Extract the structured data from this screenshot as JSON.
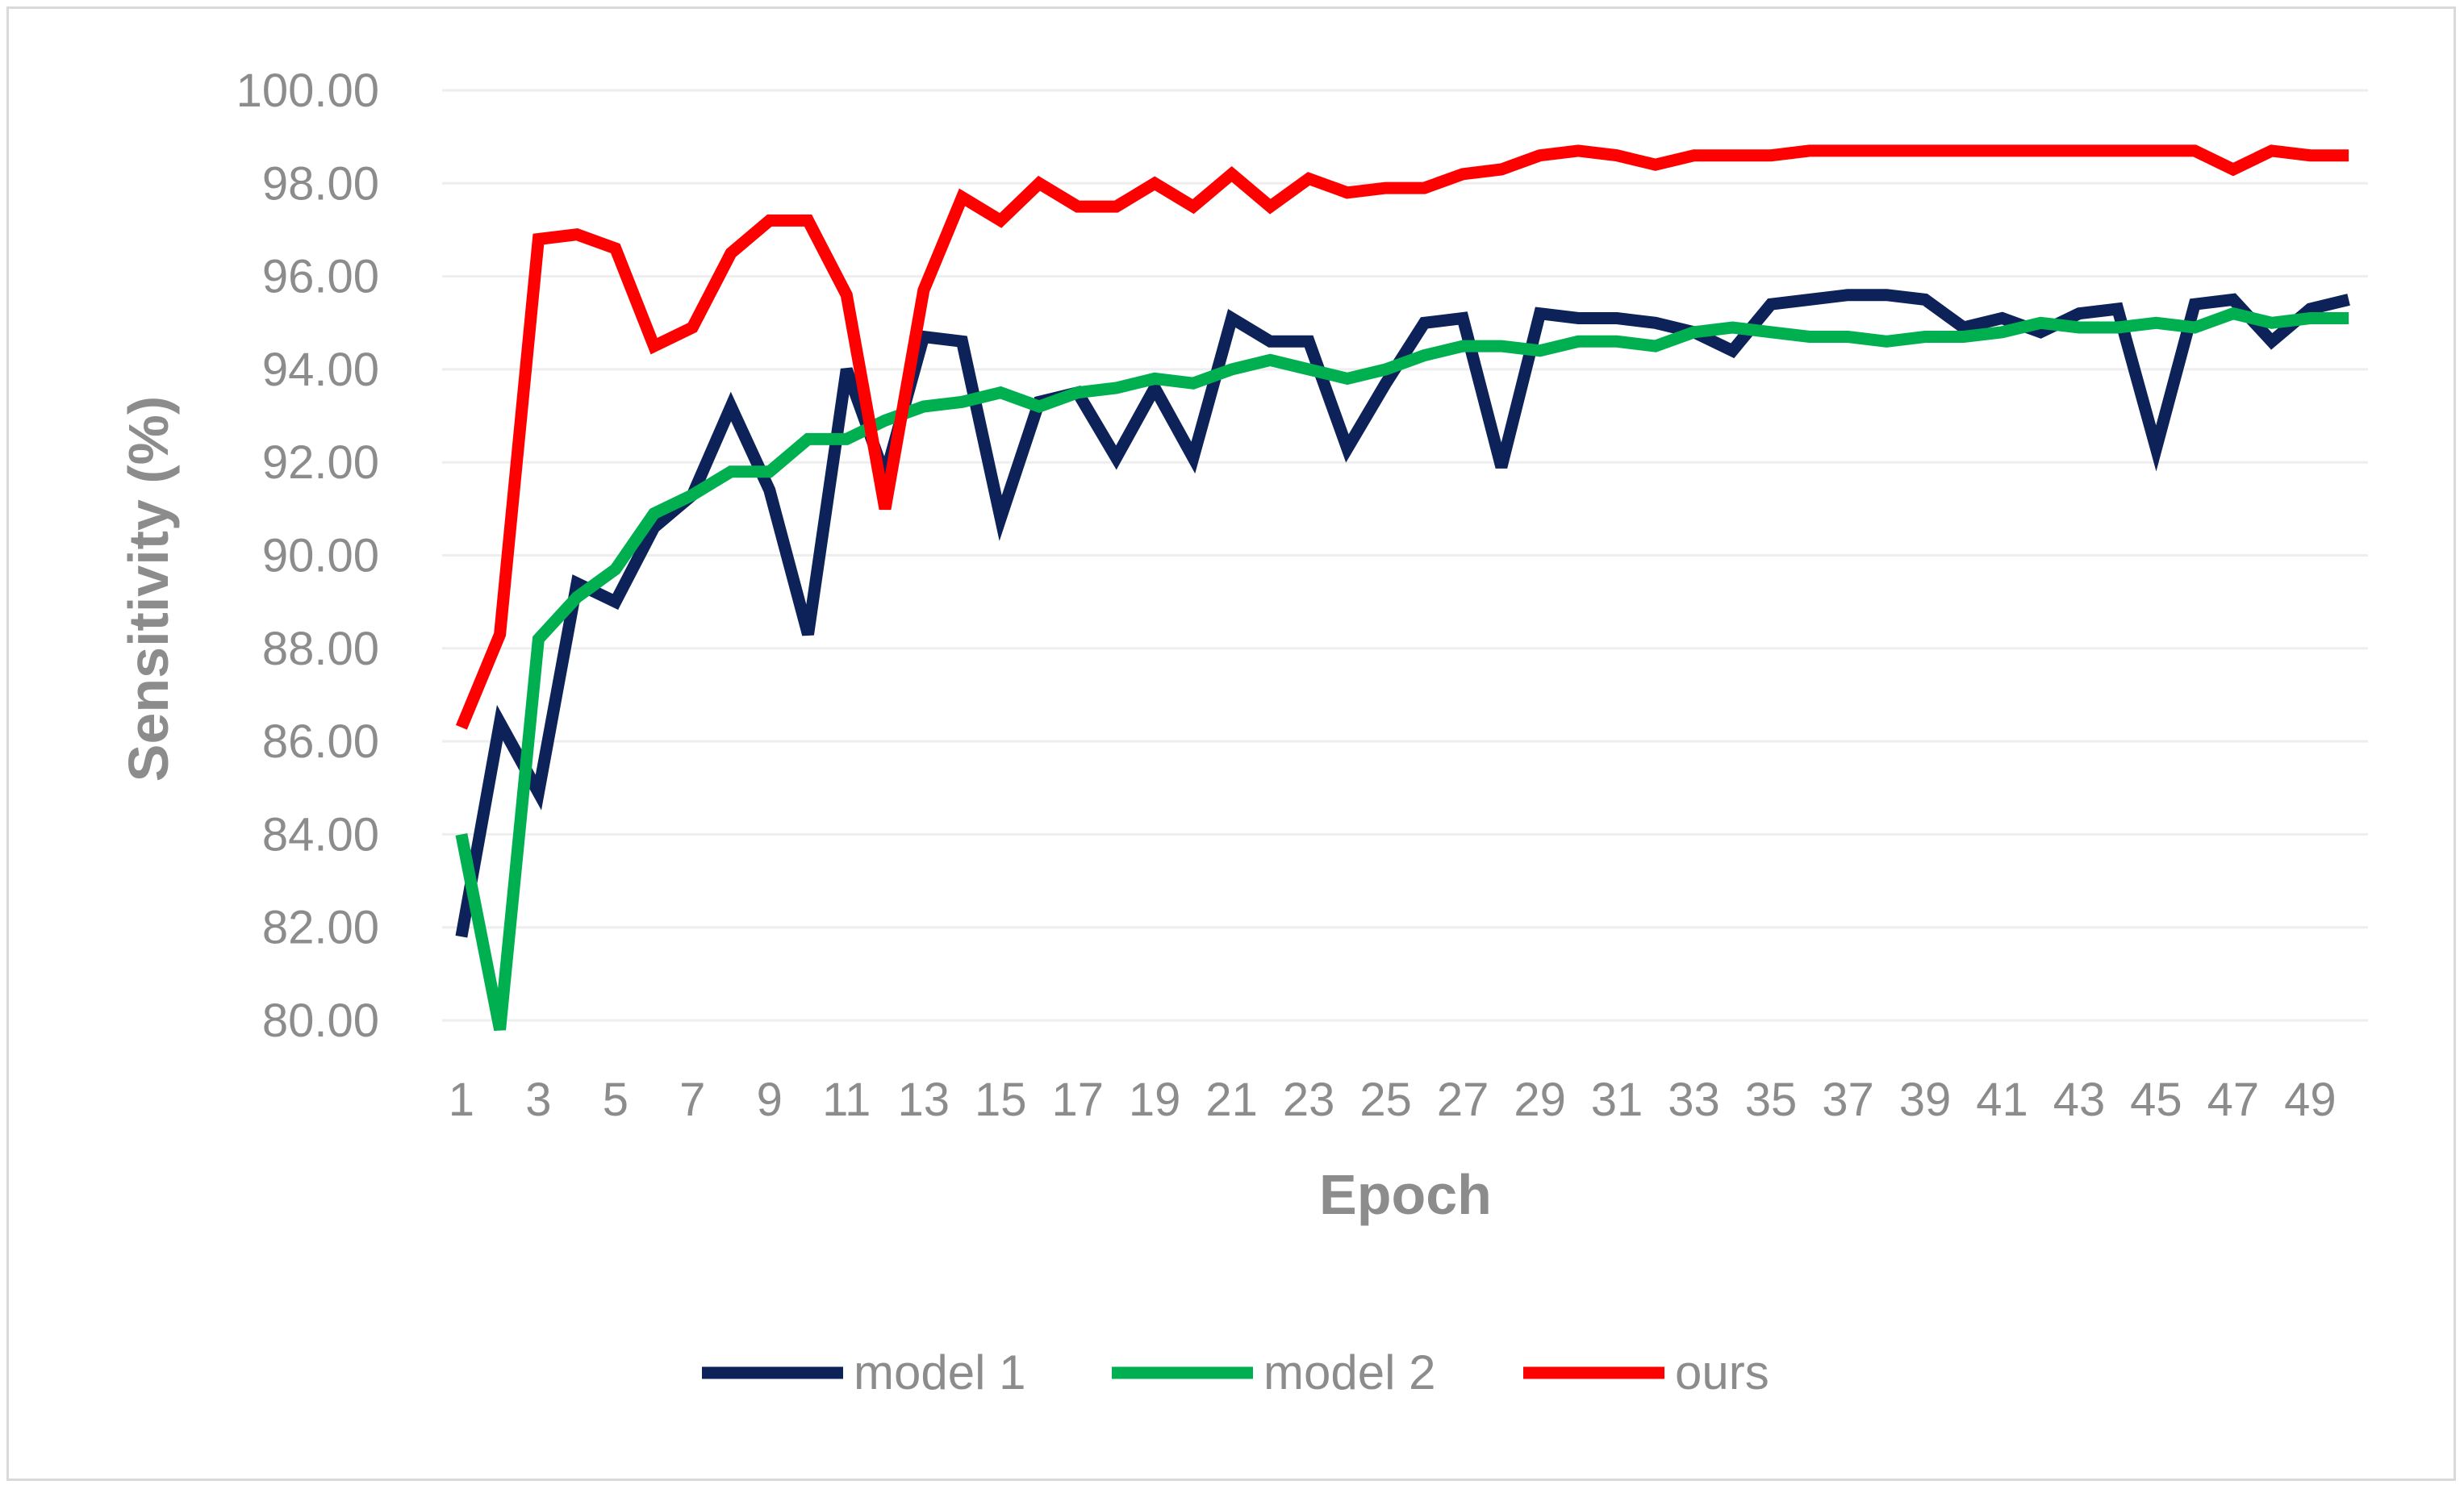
{
  "chart_data": {
    "type": "line",
    "title": "",
    "xlabel": "Epoch",
    "ylabel": "Sensitivity (%)",
    "ylim": [
      80,
      100
    ],
    "yticks": [
      "80.00",
      "82.00",
      "84.00",
      "86.00",
      "88.00",
      "90.00",
      "92.00",
      "94.00",
      "96.00",
      "98.00",
      "100.00"
    ],
    "xtick_labels": [
      "1",
      "3",
      "5",
      "7",
      "9",
      "11",
      "13",
      "15",
      "17",
      "19",
      "21",
      "23",
      "25",
      "27",
      "29",
      "31",
      "33",
      "35",
      "37",
      "39",
      "41",
      "43",
      "45",
      "47",
      "49"
    ],
    "grid": "horizontal",
    "legend": "bottom",
    "x": [
      1,
      2,
      3,
      4,
      5,
      6,
      7,
      8,
      9,
      10,
      11,
      12,
      13,
      14,
      15,
      16,
      17,
      18,
      19,
      20,
      21,
      22,
      23,
      24,
      25,
      26,
      27,
      28,
      29,
      30,
      31,
      32,
      33,
      34,
      35,
      36,
      37,
      38,
      39,
      40,
      41,
      42,
      43,
      44,
      45,
      46,
      47,
      48,
      49,
      50
    ],
    "series": [
      {
        "name": "model 1",
        "color": "#0d2258",
        "values": [
          81.8,
          86.4,
          84.9,
          89.4,
          89.0,
          90.6,
          91.3,
          93.2,
          91.4,
          88.3,
          94.0,
          91.7,
          94.7,
          94.6,
          90.8,
          93.3,
          93.5,
          92.1,
          93.6,
          92.1,
          95.1,
          94.6,
          94.6,
          92.3,
          93.7,
          95.0,
          95.1,
          91.9,
          95.2,
          95.1,
          95.1,
          95.0,
          94.8,
          94.4,
          95.4,
          95.5,
          95.6,
          95.6,
          95.5,
          94.9,
          95.1,
          94.8,
          95.2,
          95.3,
          92.3,
          95.4,
          95.5,
          94.6,
          95.3,
          95.5
        ]
      },
      {
        "name": "model 2",
        "color": "#00b050",
        "values": [
          84.0,
          79.8,
          88.2,
          89.1,
          89.7,
          90.9,
          91.3,
          91.8,
          91.8,
          92.5,
          92.5,
          92.9,
          93.2,
          93.3,
          93.5,
          93.2,
          93.5,
          93.6,
          93.8,
          93.7,
          94.0,
          94.2,
          94.0,
          93.8,
          94.0,
          94.3,
          94.5,
          94.5,
          94.4,
          94.6,
          94.6,
          94.5,
          94.8,
          94.9,
          94.8,
          94.7,
          94.7,
          94.6,
          94.7,
          94.7,
          94.8,
          95.0,
          94.9,
          94.9,
          95.0,
          94.9,
          95.2,
          95.0,
          95.1,
          95.1
        ]
      },
      {
        "name": "ours",
        "color": "#ff0000",
        "values": [
          86.3,
          88.3,
          96.8,
          96.9,
          96.6,
          94.5,
          94.9,
          96.5,
          97.2,
          97.2,
          95.6,
          91.0,
          95.7,
          97.7,
          97.2,
          98.0,
          97.5,
          97.5,
          98.0,
          97.5,
          98.2,
          97.5,
          98.1,
          97.8,
          97.9,
          97.9,
          98.2,
          98.3,
          98.6,
          98.7,
          98.6,
          98.4,
          98.6,
          98.6,
          98.6,
          98.7,
          98.7,
          98.7,
          98.7,
          98.7,
          98.7,
          98.7,
          98.7,
          98.7,
          98.7,
          98.7,
          98.3,
          98.7,
          98.6,
          98.6
        ]
      }
    ]
  }
}
